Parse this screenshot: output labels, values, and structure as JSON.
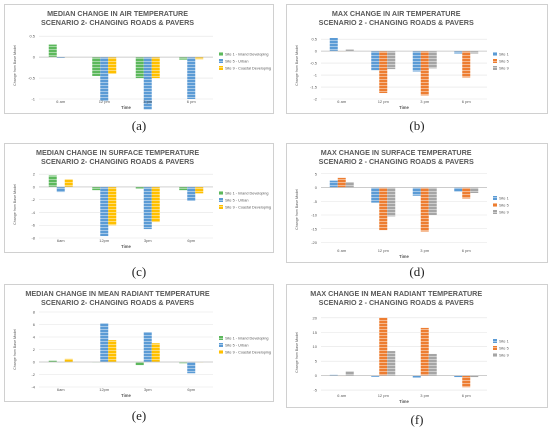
{
  "panels": [
    {
      "label": "(a)",
      "chart": {
        "type": "bar",
        "title": [
          "MEDIAN CHANGE IN AIR TEMPERATURE",
          "SCENARIO 2- CHANGING ROADS & PAVERS"
        ],
        "xlabel": "Time",
        "ylabel": "Change from Base Model",
        "categories": [
          "6 am",
          "12 pm",
          "3 pm",
          "6 pm"
        ],
        "ylim": [
          -1,
          0.6
        ],
        "yticks": [
          "0.5",
          "0",
          "-0.5",
          "-1"
        ],
        "grid": true,
        "legend_position": "right",
        "series": [
          {
            "name": "Site 1 - Inland Developing",
            "color": "#5cb85c",
            "values": [
              0.3,
              -0.45,
              -0.5,
              -0.06
            ]
          },
          {
            "name": "Site 5 - Urban",
            "color": "#5b9bd5",
            "values": [
              -0.02,
              -1.05,
              -1.25,
              -1.0
            ]
          },
          {
            "name": "Site 9 - Coastal Developing",
            "color": "#ffc000",
            "values": [
              0.0,
              -0.4,
              -0.5,
              -0.05
            ]
          }
        ]
      }
    },
    {
      "label": "(b)",
      "chart": {
        "type": "bar",
        "title": [
          "MAX CHANGE IN AIR TEMPERATURE",
          "SCENARIO 2 - CHANGING ROADS & PAVERS"
        ],
        "xlabel": "Time",
        "ylabel": "Change from Base Model",
        "categories": [
          "6 am",
          "12 pm",
          "3 pm",
          "6 pm"
        ],
        "ylim": [
          -2,
          0.8
        ],
        "yticks": [
          "0.5",
          "0",
          "-0.5",
          "-1",
          "-1.5",
          "-2"
        ],
        "grid": true,
        "legend_position": "right",
        "series": [
          {
            "name": "Site 1",
            "color": "#5b9bd5",
            "values": [
              0.55,
              -0.8,
              -0.85,
              -0.1
            ]
          },
          {
            "name": "Site 5",
            "color": "#ed7d31",
            "values": [
              0.0,
              -1.75,
              -1.85,
              -1.1
            ]
          },
          {
            "name": "Site 9",
            "color": "#a5a5a5",
            "values": [
              0.08,
              -0.75,
              -0.72,
              -0.1
            ]
          }
        ]
      }
    },
    {
      "label": "(c)",
      "chart": {
        "type": "bar",
        "title": [
          "MEDIAN CHANGE IN SURFACE TEMPERATURE",
          "SCENARIO 2- CHANGING ROADS & PAVERS"
        ],
        "xlabel": "Time",
        "ylabel": "Change from Base Model",
        "categories": [
          "6am",
          "12pm",
          "3pm",
          "6pm"
        ],
        "ylim": [
          -8,
          2.5
        ],
        "yticks": [
          "2",
          "0",
          "-2",
          "-4",
          "-6",
          "-8"
        ],
        "grid": true,
        "legend_position": "right",
        "series": [
          {
            "name": "Site 1 - Inland Developing",
            "color": "#5cb85c",
            "values": [
              1.8,
              -0.5,
              -0.3,
              -0.5
            ]
          },
          {
            "name": "Site 5 - Urban",
            "color": "#5b9bd5",
            "values": [
              -0.8,
              -7.7,
              -6.6,
              -2.2
            ]
          },
          {
            "name": "Site 9 - Coastal Developing",
            "color": "#ffc000",
            "values": [
              1.2,
              -6.0,
              -5.5,
              -1.0
            ]
          }
        ]
      }
    },
    {
      "label": "(d)",
      "chart": {
        "type": "bar",
        "title": [
          "MAX CHANGE IN SURFACE TEMPERATURE",
          "SCENARIO 2 - CHANGING ROADS & PAVERS"
        ],
        "xlabel": "Time",
        "ylabel": "Change from Base Model",
        "categories": [
          "6 am",
          "12 pm",
          "3 pm",
          "6 pm"
        ],
        "ylim": [
          -22,
          6
        ],
        "yticks": [
          "5",
          "0",
          "-5",
          "-10",
          "-15",
          "-20"
        ],
        "grid": true,
        "legend_position": "right",
        "series": [
          {
            "name": "Site 1",
            "color": "#5b9bd5",
            "values": [
              2.5,
              -5.5,
              -3.0,
              -1.5
            ]
          },
          {
            "name": "Site 5",
            "color": "#ed7d31",
            "values": [
              3.5,
              -15.5,
              -16.0,
              -4.0
            ]
          },
          {
            "name": "Site 9",
            "color": "#a5a5a5",
            "values": [
              2.0,
              -10.5,
              -10.0,
              -2.0
            ]
          }
        ]
      }
    },
    {
      "label": "(e)",
      "chart": {
        "type": "bar",
        "title": [
          "MEDIAN CHANGE IN MEAN RADIANT TEMPERATURE",
          "SCENARIO 2- CHANGING ROADS & PAVERS"
        ],
        "xlabel": "Time",
        "ylabel": "Change from Base Model",
        "categories": [
          "6am",
          "12pm",
          "3pm",
          "6pm"
        ],
        "ylim": [
          -4,
          8
        ],
        "yticks": [
          "8",
          "6",
          "4",
          "2",
          "0",
          "-2",
          "-4"
        ],
        "grid": true,
        "legend_position": "right",
        "series": [
          {
            "name": "Site 1 - Inland Developing",
            "color": "#5cb85c",
            "values": [
              0.2,
              0.0,
              -0.5,
              -0.2
            ]
          },
          {
            "name": "Site 5 - Urban",
            "color": "#5b9bd5",
            "values": [
              0.0,
              6.2,
              4.8,
              -1.8
            ]
          },
          {
            "name": "Site 9 - Coastal Developing",
            "color": "#ffc000",
            "values": [
              0.5,
              3.5,
              3.0,
              0.0
            ]
          }
        ]
      }
    },
    {
      "label": "(f)",
      "chart": {
        "type": "bar",
        "title": [
          "MAX CHANGE IN MEAN RADIANT TEMPERATURE",
          "SCENARIO 2 - CHANGING ROADS & PAVERS"
        ],
        "xlabel": "Time",
        "ylabel": "Change from Base Model",
        "categories": [
          "6 am",
          "12 pm",
          "3 pm",
          "6 pm"
        ],
        "ylim": [
          -6,
          22
        ],
        "yticks": [
          "20",
          "15",
          "10",
          "5",
          "0",
          "-5"
        ],
        "grid": true,
        "legend_position": "right",
        "series": [
          {
            "name": "Site 1",
            "color": "#5b9bd5",
            "values": [
              0.3,
              -0.4,
              -0.8,
              -0.5
            ]
          },
          {
            "name": "Site 5",
            "color": "#ed7d31",
            "values": [
              0.0,
              20.0,
              16.5,
              -4.0
            ]
          },
          {
            "name": "Site 9",
            "color": "#a5a5a5",
            "values": [
              1.5,
              8.5,
              7.5,
              -0.5
            ]
          }
        ]
      }
    }
  ]
}
